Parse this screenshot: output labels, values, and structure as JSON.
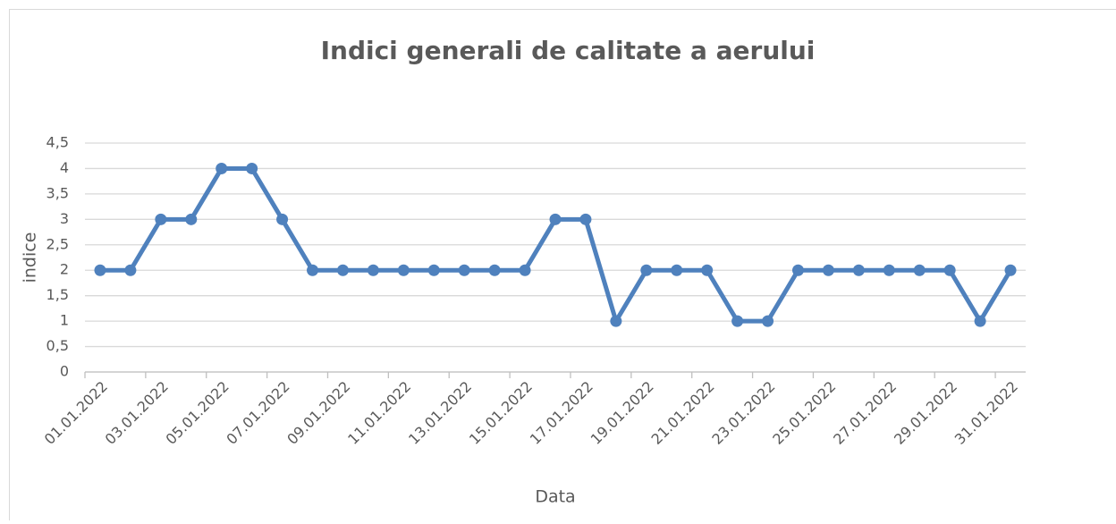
{
  "chart_data": {
    "type": "line",
    "title": "Indici generali de calitate a aerului",
    "xlabel": "Data",
    "ylabel": "indice",
    "categories": [
      "01.01.2022",
      null,
      "03.01.2022",
      null,
      "05.01.2022",
      null,
      "07.01.2022",
      null,
      "09.01.2022",
      null,
      "11.01.2022",
      null,
      "13.01.2022",
      null,
      "15.01.2022",
      null,
      "17.01.2022",
      null,
      "19.01.2022",
      null,
      "21.01.2022",
      null,
      "23.01.2022",
      null,
      "25.01.2022",
      null,
      "27.01.2022",
      null,
      "29.01.2022",
      null,
      "31.01.2022"
    ],
    "values": [
      2,
      2,
      3,
      3,
      4,
      4,
      3,
      2,
      2,
      2,
      2,
      2,
      2,
      2,
      2,
      3,
      3,
      1,
      2,
      2,
      2,
      1,
      1,
      2,
      2,
      2,
      2,
      2,
      2,
      1,
      2
    ],
    "color": "#4f81bd",
    "ylim": [
      0,
      4.5
    ],
    "yticks": [
      0,
      {
        "value": 0.5,
        "label": "0,5"
      },
      1,
      {
        "value": 1.5,
        "label": "1,5"
      },
      2,
      {
        "value": 2.5,
        "label": "2,5"
      },
      3,
      {
        "value": 3.5,
        "label": "3,5"
      },
      4,
      {
        "value": 4.5,
        "label": "4,5"
      }
    ],
    "grid": true
  }
}
